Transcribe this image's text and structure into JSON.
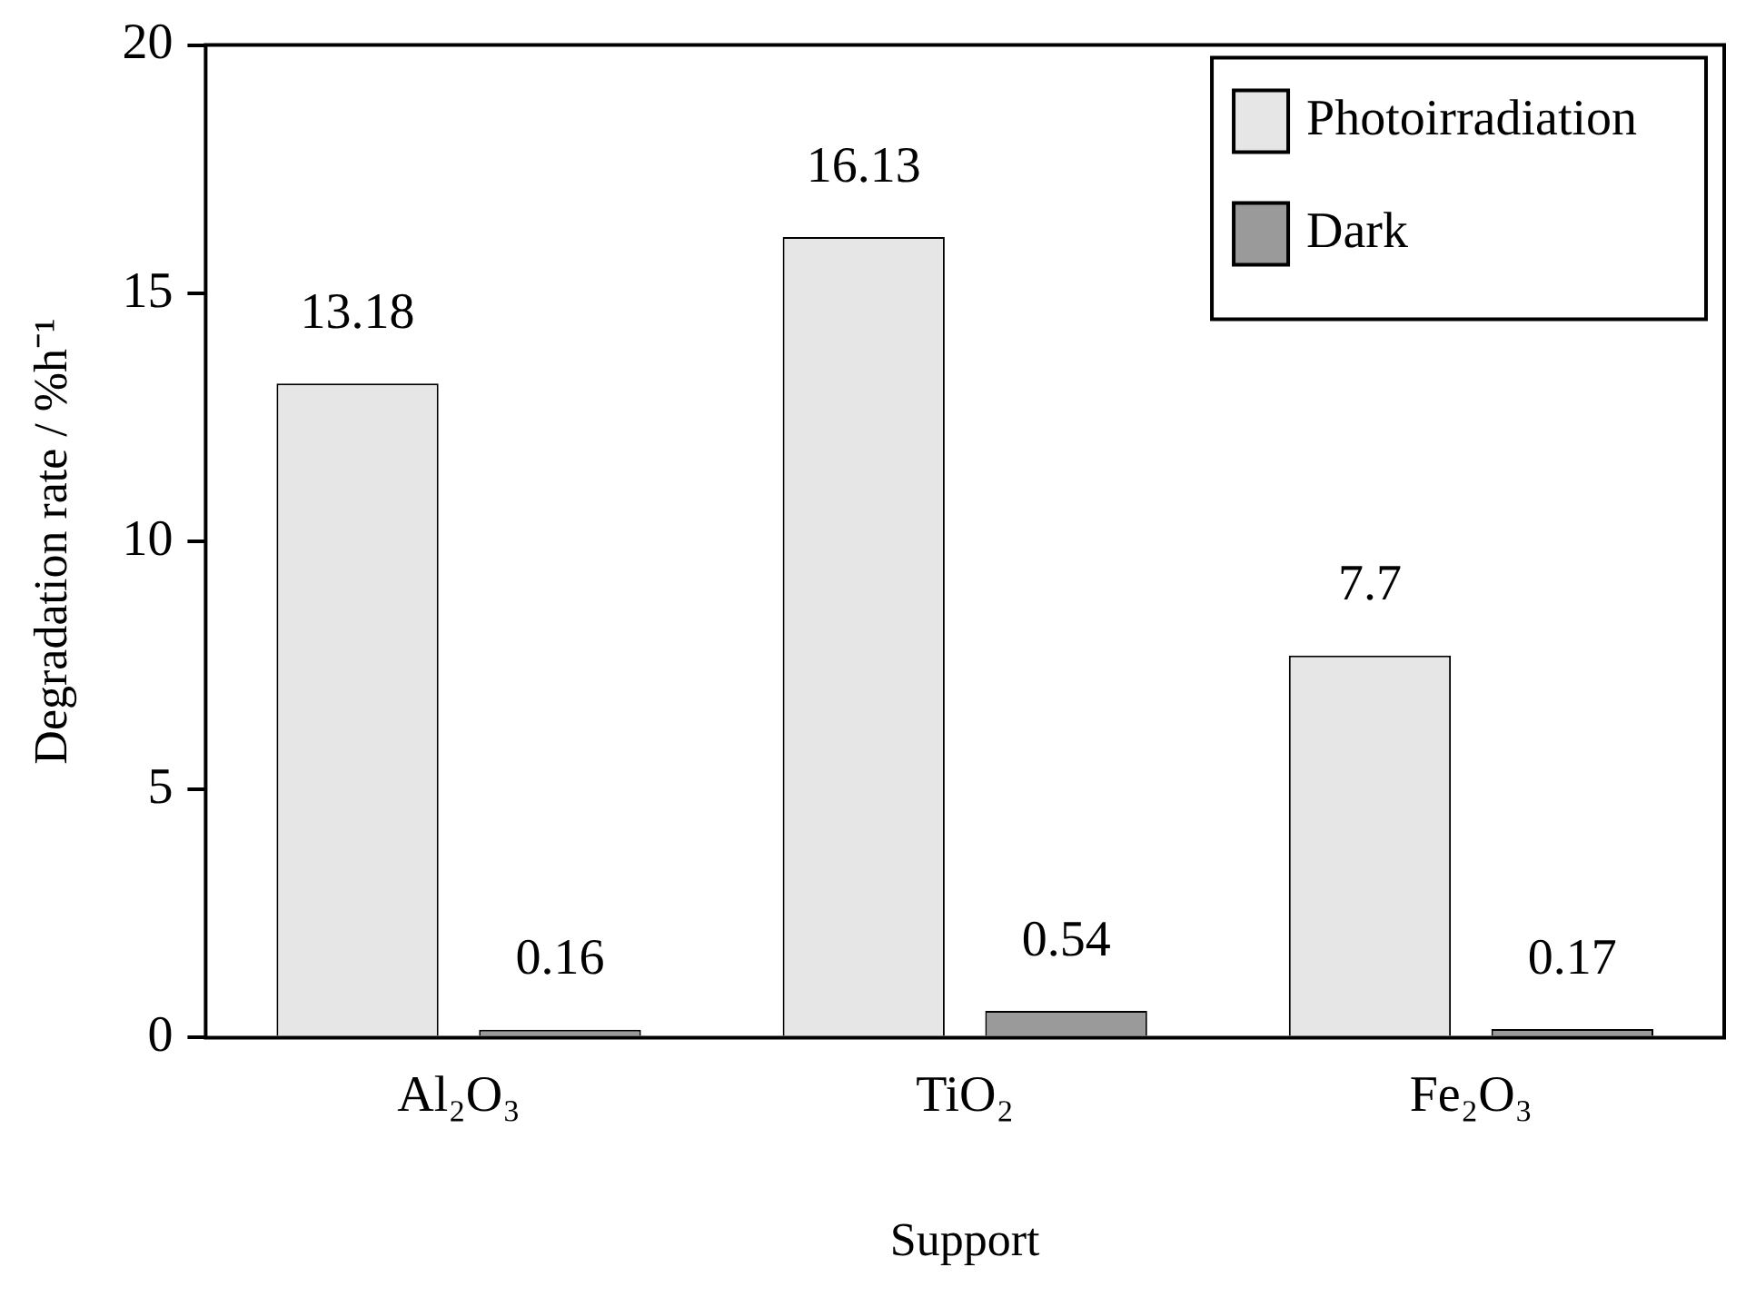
{
  "chart_data": {
    "type": "bar",
    "xlabel": "Support",
    "ylabel": "Degradation rate / %h⁻¹",
    "categories": [
      "Al₂O₃",
      "TiO₂",
      "Fe₂O₃"
    ],
    "series": [
      {
        "name": "Photoirradiation",
        "color": "#e6e6e6",
        "values": [
          13.18,
          16.13,
          7.7
        ]
      },
      {
        "name": "Dark",
        "color": "#9a9a9a",
        "values": [
          0.16,
          0.54,
          0.17
        ]
      }
    ],
    "ylim": [
      0,
      20
    ],
    "yticks": [
      0,
      5,
      10,
      15,
      20
    ],
    "grid": false,
    "legend": "top right",
    "data_labels": true
  }
}
